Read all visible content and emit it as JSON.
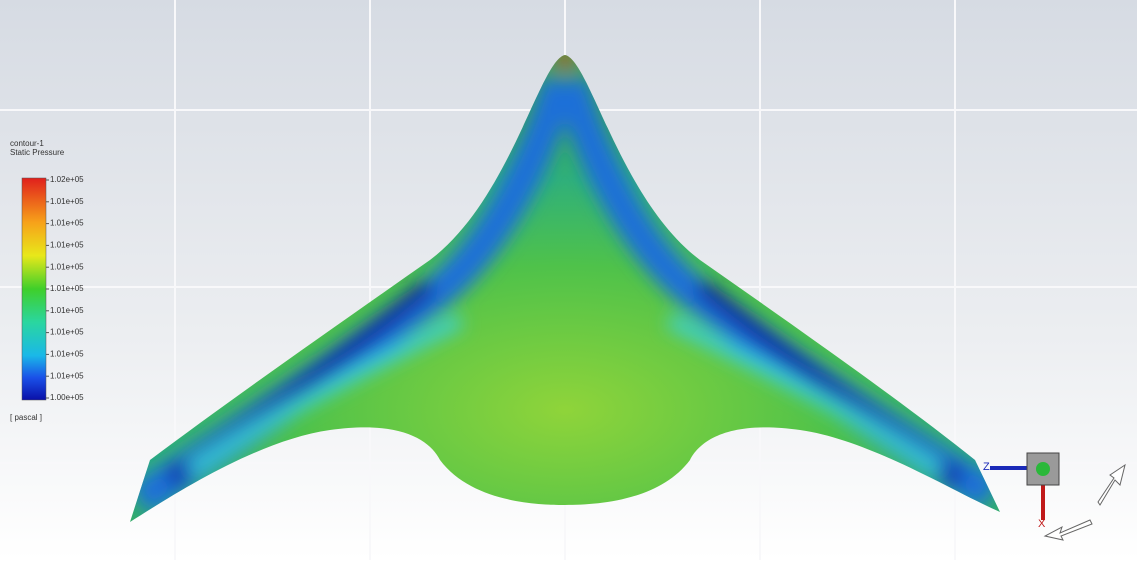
{
  "legend": {
    "title": "contour-1",
    "quantity": "Static Pressure",
    "labels": [
      "1.02e+05",
      "1.01e+05",
      "1.01e+05",
      "1.01e+05",
      "1.01e+05",
      "1.01e+05",
      "1.01e+05",
      "1.01e+05",
      "1.01e+05",
      "1.01e+05",
      "1.00e+05"
    ],
    "unit": "[ pascal ]"
  },
  "triad": {
    "z": "Z",
    "x": "X"
  }
}
